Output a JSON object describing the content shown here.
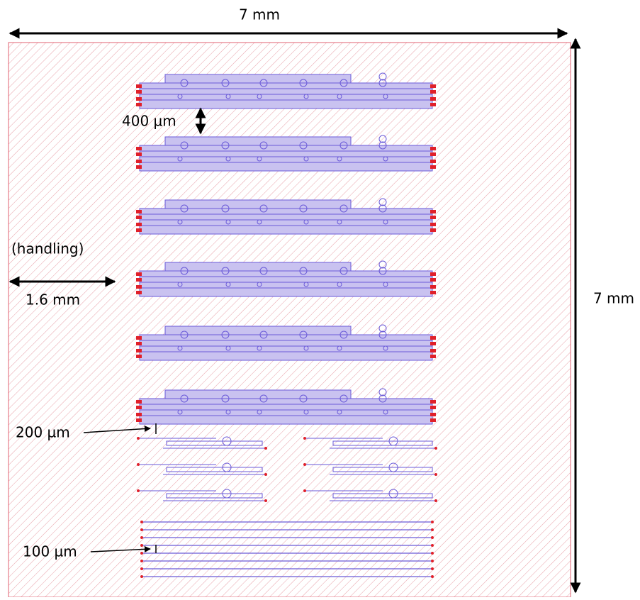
{
  "dimensions": {
    "chip_width": "7 mm",
    "chip_height": "7 mm",
    "spacing": "400 µm",
    "handling_label": "(handling)",
    "handling_width": "1.6 mm",
    "gap_200": "200 µm",
    "gap_100": "100 µm"
  }
}
